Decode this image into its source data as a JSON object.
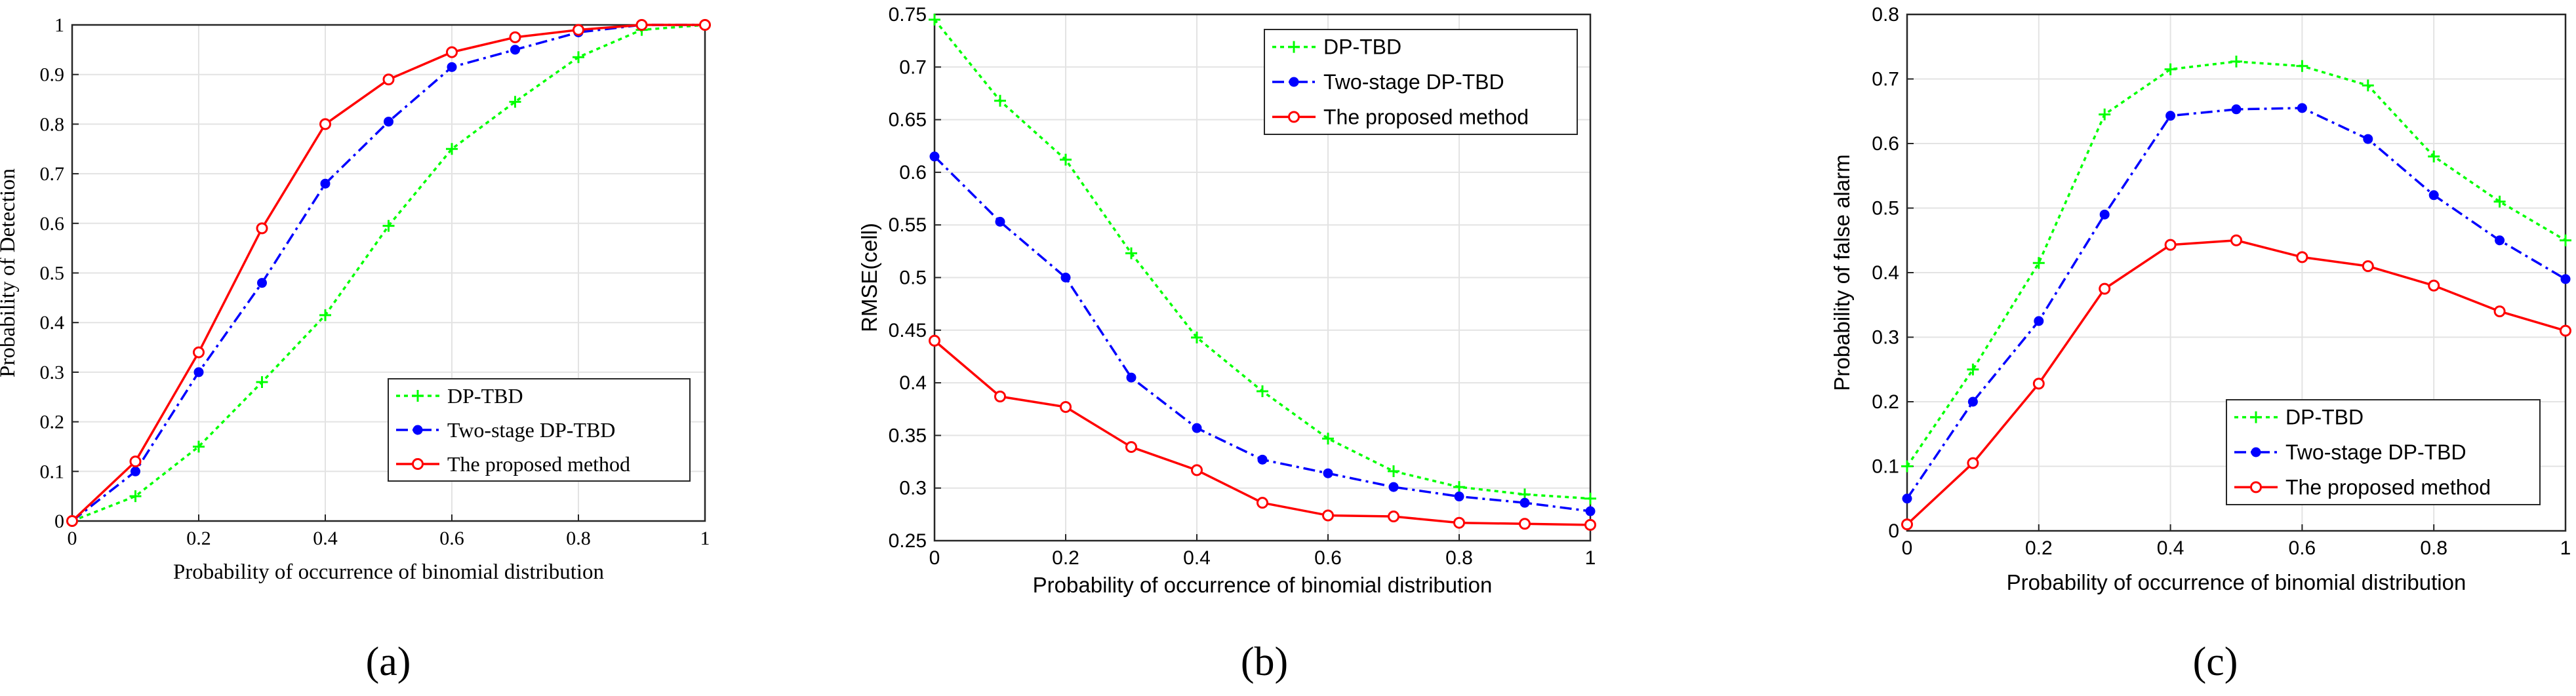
{
  "chart_data": [
    {
      "type": "line",
      "panel_label": "(a)",
      "xlabel": "Probability of occurrence of binomial distribution",
      "ylabel": "Probability of Detection",
      "xlim": [
        0,
        1
      ],
      "ylim": [
        0,
        1
      ],
      "xticks": [
        0,
        0.2,
        0.4,
        0.6,
        0.8,
        1
      ],
      "yticks": [
        0,
        0.1,
        0.2,
        0.3,
        0.4,
        0.5,
        0.6,
        0.7,
        0.8,
        0.9,
        1
      ],
      "grid": true,
      "legend_position": "bottom-right",
      "x": [
        0,
        0.1,
        0.2,
        0.3,
        0.4,
        0.5,
        0.6,
        0.7,
        0.8,
        0.9,
        1
      ],
      "series": [
        {
          "name": "DP-TBD",
          "color": "#00ff00",
          "dash": "dotted",
          "marker": "plus",
          "values": [
            0,
            0.05,
            0.15,
            0.28,
            0.415,
            0.595,
            0.75,
            0.845,
            0.935,
            0.99,
            1
          ]
        },
        {
          "name": "Two-stage DP-TBD",
          "color": "#0000ff",
          "dash": "dashdot",
          "marker": "filled-circle",
          "values": [
            0,
            0.1,
            0.3,
            0.48,
            0.68,
            0.805,
            0.915,
            0.95,
            0.985,
            1,
            1
          ]
        },
        {
          "name": "The proposed method",
          "color": "#ff0000",
          "dash": "solid",
          "marker": "open-circle",
          "values": [
            0,
            0.12,
            0.34,
            0.59,
            0.8,
            0.89,
            0.945,
            0.975,
            0.99,
            1,
            1
          ]
        }
      ]
    },
    {
      "type": "line",
      "panel_label": "(b)",
      "xlabel": "Probability of occurrence of binomial distribution",
      "ylabel": "RMSE(cell)",
      "xlim": [
        0,
        1
      ],
      "ylim": [
        0.25,
        0.75
      ],
      "xticks": [
        0,
        0.2,
        0.4,
        0.6,
        0.8,
        1
      ],
      "yticks": [
        0.25,
        0.3,
        0.35,
        0.4,
        0.45,
        0.5,
        0.55,
        0.6,
        0.65,
        0.7,
        0.75
      ],
      "grid": true,
      "legend_position": "top-right",
      "x": [
        0,
        0.1,
        0.2,
        0.3,
        0.4,
        0.5,
        0.6,
        0.7,
        0.8,
        0.9,
        1
      ],
      "series": [
        {
          "name": "DP-TBD",
          "color": "#00ff00",
          "dash": "dotted",
          "marker": "plus",
          "values": [
            0.745,
            0.668,
            0.612,
            0.523,
            0.443,
            0.392,
            0.347,
            0.316,
            0.301,
            0.294,
            0.29
          ]
        },
        {
          "name": "Two-stage DP-TBD",
          "color": "#0000ff",
          "dash": "dashdot",
          "marker": "filled-circle",
          "values": [
            0.615,
            0.553,
            0.5,
            0.405,
            0.357,
            0.327,
            0.314,
            0.301,
            0.292,
            0.286,
            0.278
          ]
        },
        {
          "name": "The proposed method",
          "color": "#ff0000",
          "dash": "solid",
          "marker": "open-circle",
          "values": [
            0.44,
            0.387,
            0.377,
            0.339,
            0.317,
            0.286,
            0.274,
            0.273,
            0.267,
            0.266,
            0.265
          ]
        }
      ]
    },
    {
      "type": "line",
      "panel_label": "(c)",
      "xlabel": "Probability of occurrence of binomial distribution",
      "ylabel": "Probability of false alarm",
      "xlim": [
        0,
        1
      ],
      "ylim": [
        0,
        0.8
      ],
      "xticks": [
        0,
        0.2,
        0.4,
        0.6,
        0.8,
        1
      ],
      "yticks": [
        0,
        0.1,
        0.2,
        0.3,
        0.4,
        0.5,
        0.6,
        0.7,
        0.8
      ],
      "grid": true,
      "legend_position": "bottom-right",
      "x": [
        0,
        0.1,
        0.2,
        0.3,
        0.4,
        0.5,
        0.6,
        0.7,
        0.8,
        0.9,
        1
      ],
      "series": [
        {
          "name": "DP-TBD",
          "color": "#00ff00",
          "dash": "dotted",
          "marker": "plus",
          "values": [
            0.1,
            0.25,
            0.415,
            0.645,
            0.715,
            0.727,
            0.72,
            0.69,
            0.58,
            0.51,
            0.45
          ]
        },
        {
          "name": "Two-stage DP-TBD",
          "color": "#0000ff",
          "dash": "dashdot",
          "marker": "filled-circle",
          "values": [
            0.05,
            0.2,
            0.325,
            0.49,
            0.643,
            0.653,
            0.655,
            0.607,
            0.52,
            0.45,
            0.39
          ]
        },
        {
          "name": "The proposed method",
          "color": "#ff0000",
          "dash": "solid",
          "marker": "open-circle",
          "values": [
            0.01,
            0.105,
            0.228,
            0.375,
            0.443,
            0.45,
            0.424,
            0.41,
            0.38,
            0.34,
            0.31
          ]
        }
      ]
    }
  ]
}
